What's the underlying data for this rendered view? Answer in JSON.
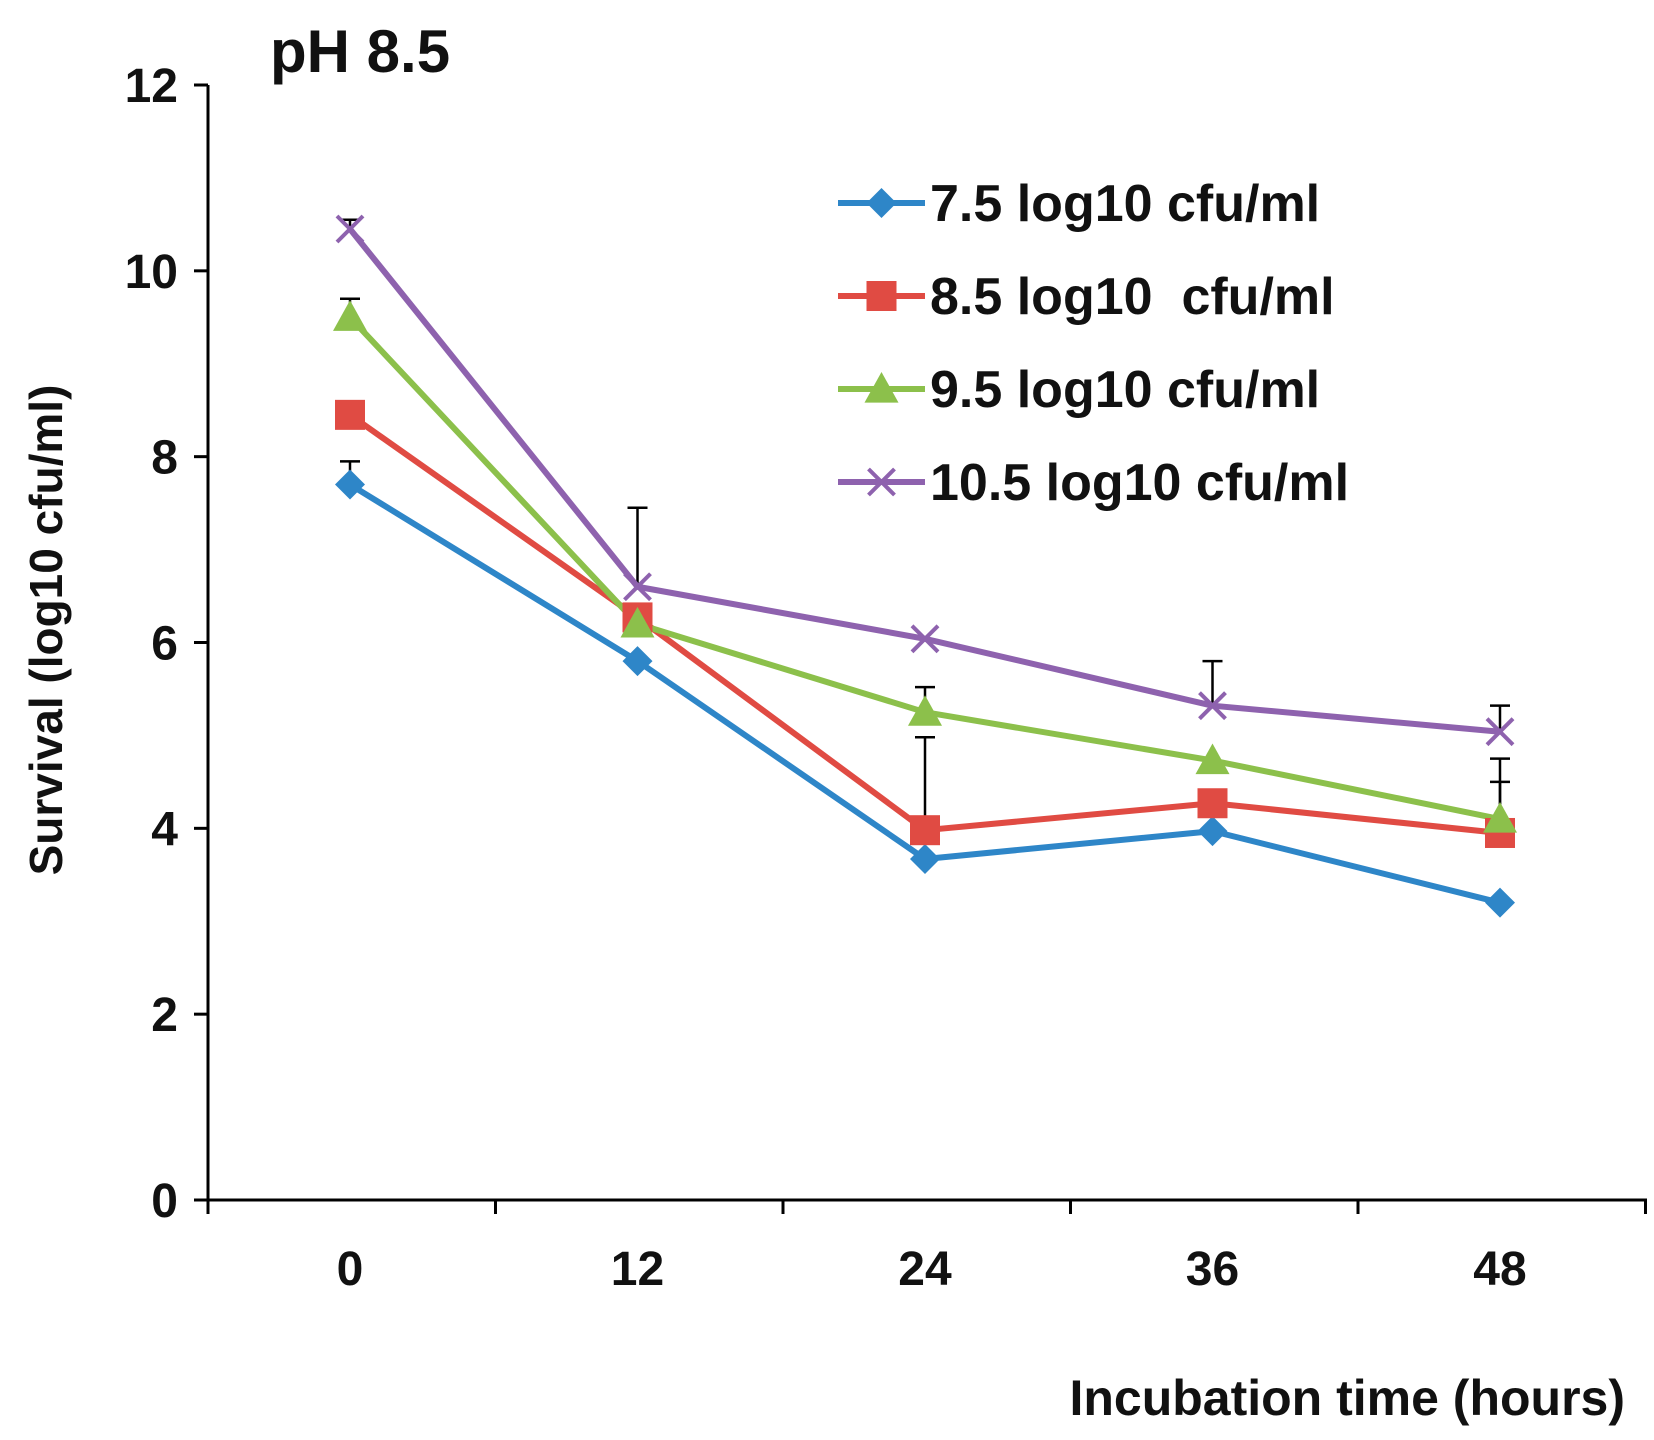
{
  "chart_data": {
    "type": "line",
    "title": "pH 8.5",
    "xlabel": "Incubation time (hours)",
    "ylabel": "Survival (log10 cfu/ml)",
    "x": [
      0,
      12,
      24,
      36,
      48
    ],
    "xtick_labels": [
      "0",
      "12",
      "24",
      "36",
      "48"
    ],
    "ylim": [
      0,
      12
    ],
    "yticks": [
      0,
      2,
      4,
      6,
      8,
      10,
      12
    ],
    "ytick_labels": [
      "0",
      "2",
      "4",
      "6",
      "8",
      "10",
      "12"
    ],
    "legend_position": "top-right",
    "grid": false,
    "series": [
      {
        "name": "7.5 log10 cfu/ml",
        "color": "#2E86C8",
        "marker": "diamond",
        "values": [
          7.7,
          5.8,
          3.67,
          3.97,
          3.2
        ],
        "error_upper": [
          0.25,
          null,
          null,
          null,
          null
        ]
      },
      {
        "name": "8.5 log10  cfu/ml",
        "color": "#E04B43",
        "marker": "square",
        "values": [
          8.45,
          6.27,
          3.98,
          4.27,
          3.95
        ],
        "error_upper": [
          null,
          null,
          1.0,
          null,
          0.55
        ]
      },
      {
        "name": "9.5 log10 cfu/ml",
        "color": "#8CC04B",
        "marker": "triangle",
        "values": [
          9.5,
          6.2,
          5.25,
          4.73,
          4.1
        ],
        "error_upper": [
          0.2,
          null,
          0.27,
          null,
          0.65
        ]
      },
      {
        "name": "10.5 log10 cfu/ml",
        "color": "#8E62AE",
        "marker": "cross",
        "values": [
          10.45,
          6.6,
          6.04,
          5.32,
          5.04
        ],
        "error_upper": [
          0.1,
          0.85,
          null,
          0.48,
          0.28
        ]
      }
    ]
  }
}
